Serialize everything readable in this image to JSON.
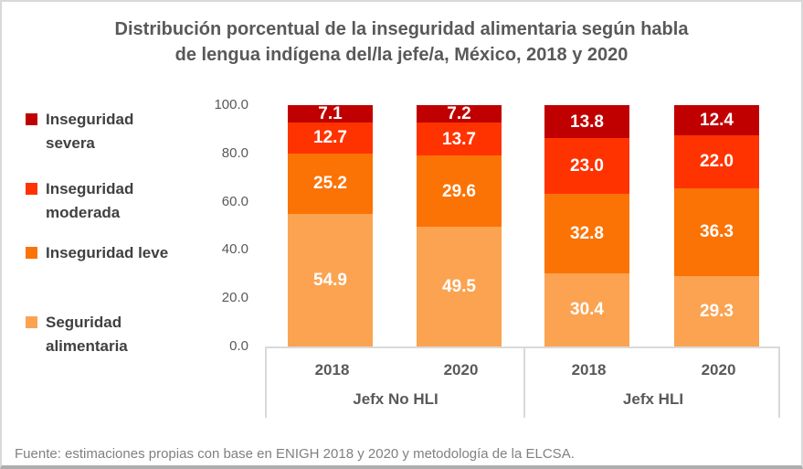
{
  "title": {
    "line1": "Distribución porcentual de la inseguridad alimentaria según habla",
    "line2": "de lengua indígena del/la jefe/a, México, 2018 y 2020"
  },
  "source_note": "Fuente: estimaciones propias con base en ENIGH 2018 y 2020 y metodología de la ELCSA.",
  "colors": {
    "severe": "#C00000",
    "moderate": "#FF3300",
    "mild": "#FB7305",
    "secure": "#FBA351",
    "title_text": "#595959",
    "legend_text": "#404040",
    "axis_text": "#595959",
    "value_label_text": "#FFFFFF",
    "source_text": "#808080",
    "axis_line": "#D9D9D9"
  },
  "chart_data": {
    "type": "bar",
    "subtype": "100-percent-stacked-column",
    "title": "Distribución porcentual de la inseguridad alimentaria según habla de lengua indígena del/la jefe/a, México, 2018 y 2020",
    "groups": [
      {
        "label": "Jefx No HLI",
        "categories": [
          "2018",
          "2020"
        ]
      },
      {
        "label": "Jefx HLI",
        "categories": [
          "2018",
          "2020"
        ]
      }
    ],
    "series_bottom_to_top": [
      {
        "name": "Seguridad alimentaria",
        "color": "#FBA351",
        "values": [
          54.9,
          49.5,
          30.4,
          29.3
        ]
      },
      {
        "name": "Inseguridad leve",
        "color": "#FB7305",
        "values": [
          25.2,
          29.6,
          32.8,
          36.3
        ]
      },
      {
        "name": "Inseguridad moderada",
        "color": "#FF3300",
        "values": [
          12.7,
          13.7,
          23.0,
          22.0
        ]
      },
      {
        "name": "Inseguridad severa",
        "color": "#C00000",
        "values": [
          7.1,
          7.2,
          13.8,
          12.4
        ]
      }
    ],
    "ylim": [
      0,
      100
    ],
    "yticks": [
      "100.0",
      "80.0",
      "60.0",
      "40.0",
      "20.0",
      "0.0"
    ],
    "grid": false,
    "legend_position": "left",
    "value_labels": "inside center, one decimal"
  }
}
